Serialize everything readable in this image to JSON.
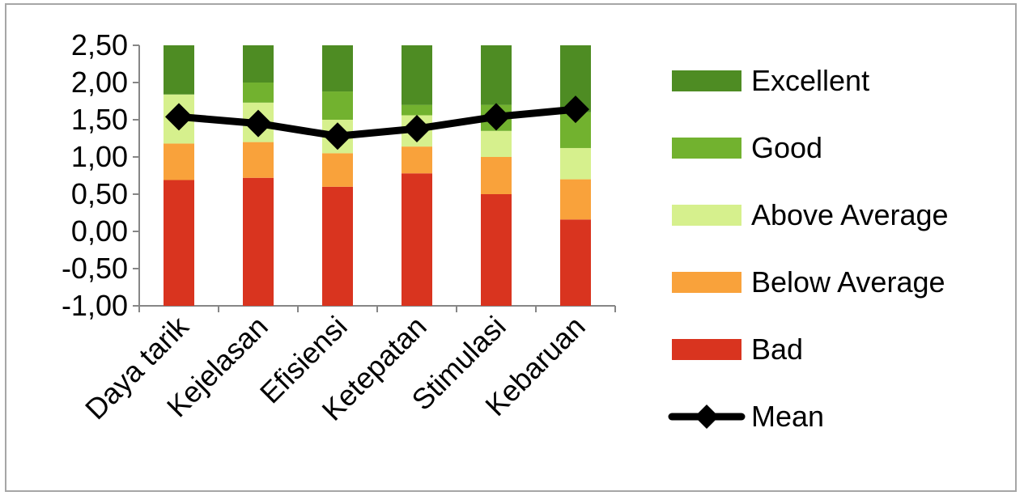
{
  "chart_data": {
    "type": "bar",
    "stacked": true,
    "categories": [
      "Daya tarik",
      "Kejelasan",
      "Efisiensi",
      "Ketepatan",
      "Stimulasi",
      "Kebaruan"
    ],
    "ylim": [
      -1.0,
      2.5
    ],
    "yticks": [
      "2,50",
      "2,00",
      "1,50",
      "1,00",
      "0,50",
      "0,00",
      "-0,50",
      "-1,00"
    ],
    "ytick_values": [
      2.5,
      2.0,
      1.5,
      1.0,
      0.5,
      0.0,
      -0.5,
      -1.0
    ],
    "series": [
      {
        "name": "Bad",
        "color": "#d9341f",
        "from": [
          -1.0,
          -1.0,
          -1.0,
          -1.0,
          -1.0,
          -1.0
        ],
        "to": [
          0.69,
          0.72,
          0.6,
          0.78,
          0.5,
          0.16
        ]
      },
      {
        "name": "Below Average",
        "color": "#f9a23b",
        "from": [
          0.69,
          0.72,
          0.6,
          0.78,
          0.5,
          0.16
        ],
        "to": [
          1.18,
          1.2,
          1.05,
          1.14,
          1.0,
          0.7
        ]
      },
      {
        "name": "Above Average",
        "color": "#d6f08d",
        "from": [
          1.18,
          1.2,
          1.05,
          1.14,
          1.0,
          0.7
        ],
        "to": [
          1.84,
          1.73,
          1.5,
          1.56,
          1.35,
          1.12
        ]
      },
      {
        "name": "Good",
        "color": "#72b22f",
        "from": [
          1.84,
          1.73,
          1.5,
          1.56,
          1.35,
          1.12
        ],
        "to": [
          1.84,
          2.0,
          1.88,
          1.7,
          1.7,
          1.6
        ]
      },
      {
        "name": "Excellent",
        "color": "#4e8c23",
        "from": [
          1.84,
          2.0,
          1.88,
          1.7,
          1.7,
          1.6
        ],
        "to": [
          2.5,
          2.5,
          2.5,
          2.5,
          2.5,
          2.5
        ]
      }
    ],
    "mean": {
      "name": "Mean",
      "color": "#000000",
      "values": [
        1.54,
        1.45,
        1.28,
        1.38,
        1.54,
        1.64
      ]
    },
    "legend_order": [
      "Excellent",
      "Good",
      "Above Average",
      "Below Average",
      "Bad",
      "Mean"
    ],
    "legend_position": "right",
    "grid": false
  }
}
